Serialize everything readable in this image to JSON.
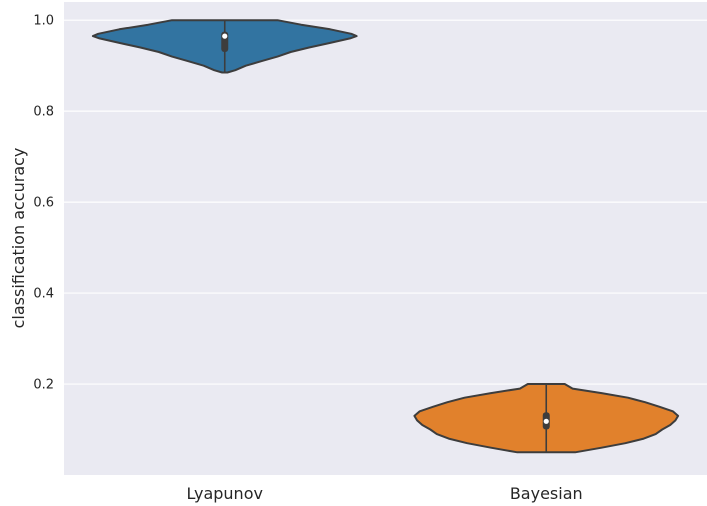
{
  "chart_data": {
    "type": "violin",
    "xlabel": "",
    "ylabel": "classification accuracy",
    "ylim": [
      0.0,
      1.04
    ],
    "yticks": [
      0.2,
      0.4,
      0.6,
      0.8,
      1.0
    ],
    "ytick_labels": [
      "0.2",
      "0.4",
      "0.6",
      "0.8",
      "1.0"
    ],
    "grid": true,
    "categories": [
      "Lyapunov",
      "Bayesian"
    ],
    "series": [
      {
        "category": "Lyapunov",
        "color": "#3274a1",
        "min": 0.885,
        "q1": 0.93,
        "median": 0.965,
        "q3": 0.975,
        "max": 1.0,
        "density": [
          [
            0.885,
            0.02
          ],
          [
            0.89,
            0.08
          ],
          [
            0.9,
            0.16
          ],
          [
            0.91,
            0.28
          ],
          [
            0.92,
            0.4
          ],
          [
            0.93,
            0.5
          ],
          [
            0.94,
            0.64
          ],
          [
            0.95,
            0.8
          ],
          [
            0.96,
            0.95
          ],
          [
            0.965,
            1.0
          ],
          [
            0.97,
            0.96
          ],
          [
            0.98,
            0.8
          ],
          [
            0.99,
            0.58
          ],
          [
            1.0,
            0.4
          ]
        ]
      },
      {
        "category": "Bayesian",
        "color": "#e1812c",
        "min": 0.05,
        "q1": 0.1,
        "median": 0.118,
        "q3": 0.138,
        "max": 0.2,
        "density": [
          [
            0.05,
            0.22
          ],
          [
            0.06,
            0.42
          ],
          [
            0.07,
            0.6
          ],
          [
            0.08,
            0.74
          ],
          [
            0.09,
            0.83
          ],
          [
            0.1,
            0.88
          ],
          [
            0.11,
            0.94
          ],
          [
            0.12,
            0.98
          ],
          [
            0.13,
            1.0
          ],
          [
            0.14,
            0.96
          ],
          [
            0.15,
            0.86
          ],
          [
            0.16,
            0.75
          ],
          [
            0.17,
            0.62
          ],
          [
            0.18,
            0.42
          ],
          [
            0.19,
            0.2
          ],
          [
            0.2,
            0.14
          ]
        ]
      }
    ]
  },
  "colors": {
    "plot_background": "#eaeaf2",
    "grid": "#ffffff",
    "outline": "#3d3d3d",
    "median_dot": "#ffffff"
  }
}
